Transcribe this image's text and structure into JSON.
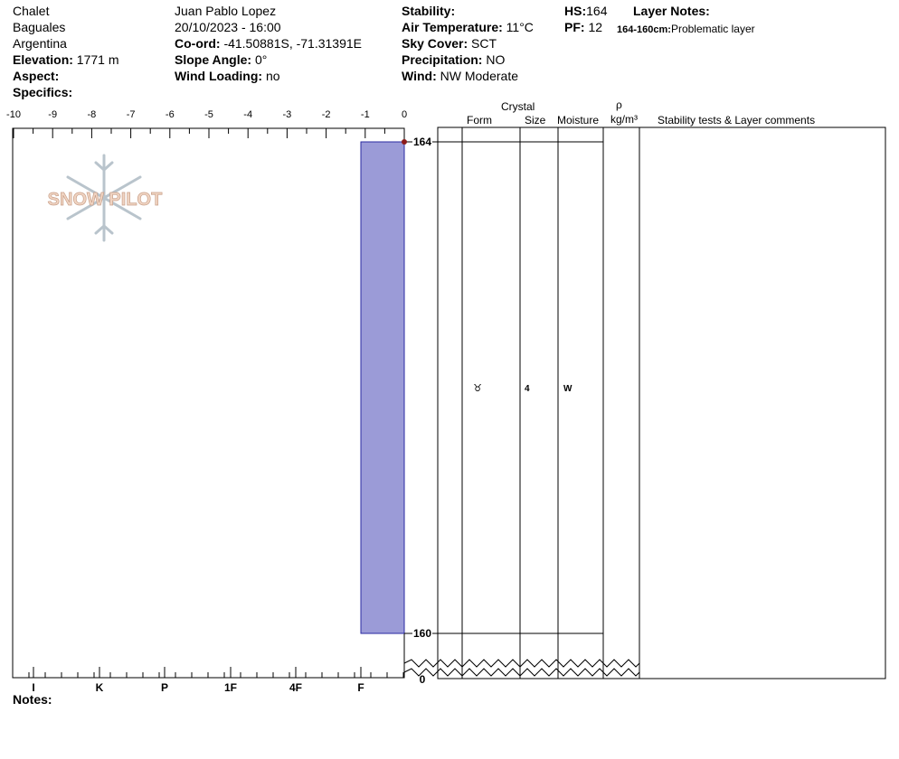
{
  "header": {
    "col1": {
      "location": "Chalet",
      "range": "Baguales",
      "country": "Argentina",
      "elevation_label": "Elevation:",
      "elevation_value": "1771 m",
      "aspect_label": "Aspect:",
      "aspect_value": "",
      "specifics_label": "Specifics:",
      "specifics_value": ""
    },
    "col2": {
      "observer": "Juan Pablo  Lopez",
      "datetime": "20/10/2023 - 16:00",
      "coord_label": "Co-ord:",
      "coord_value": "-41.50881S, -71.31391E",
      "slope_label": "Slope Angle:",
      "slope_value": "0°",
      "wind_loading_label": "Wind Loading:",
      "wind_loading_value": "no"
    },
    "col3": {
      "stability_label": "Stability:",
      "stability_value": "",
      "air_temp_label": "Air Temperature:",
      "air_temp_value": "11°C",
      "sky_label": "Sky Cover:",
      "sky_value": "SCT",
      "precip_label": "Precipitation:",
      "precip_value": "NO",
      "wind_label": "Wind:",
      "wind_value": "NW Moderate"
    },
    "col4": {
      "hs_label": "HS:",
      "hs_value": "164",
      "pf_label": "PF:",
      "pf_value": "12",
      "layer_notes_label": "Layer Notes:",
      "layer_note_range": "164-160cm:",
      "layer_note_text": "Problematic layer"
    }
  },
  "watermark": "SNOW PILOT",
  "notes_label": "Notes:",
  "columns": {
    "crystal": "Crystal",
    "form": "Form",
    "size": "Size",
    "moisture": "Moisture",
    "rho": "ρ",
    "density_unit": "kg/m³",
    "comments": "Stability tests & Layer comments"
  },
  "chart_data": {
    "type": "bar",
    "title": "",
    "temperature_axis": {
      "ticks": [
        -10,
        -9,
        -8,
        -7,
        -6,
        -5,
        -4,
        -3,
        -2,
        -1,
        0
      ],
      "range": [
        -10,
        0
      ]
    },
    "hardness_axis": {
      "labels": [
        "I",
        "K",
        "P",
        "1F",
        "4F",
        "F"
      ]
    },
    "height_axis": {
      "range": [
        160,
        164
      ],
      "labels": [
        "164",
        "160",
        "0"
      ]
    },
    "snow_temperature_points": [
      {
        "height": 164,
        "temperature": 0
      }
    ],
    "layers": [
      {
        "top": 164,
        "bottom": 160,
        "hardness": "F",
        "grain_form_symbol": "♉",
        "grain_size": "4",
        "moisture": "W"
      }
    ],
    "colors": {
      "layer_fill": "#9b9bd7",
      "layer_stroke": "#2a2aa0",
      "temp_point": "#8b1a1a",
      "watermark_fill": "#e8c0a8",
      "watermark_snowflake": "#b9c4cc"
    }
  }
}
